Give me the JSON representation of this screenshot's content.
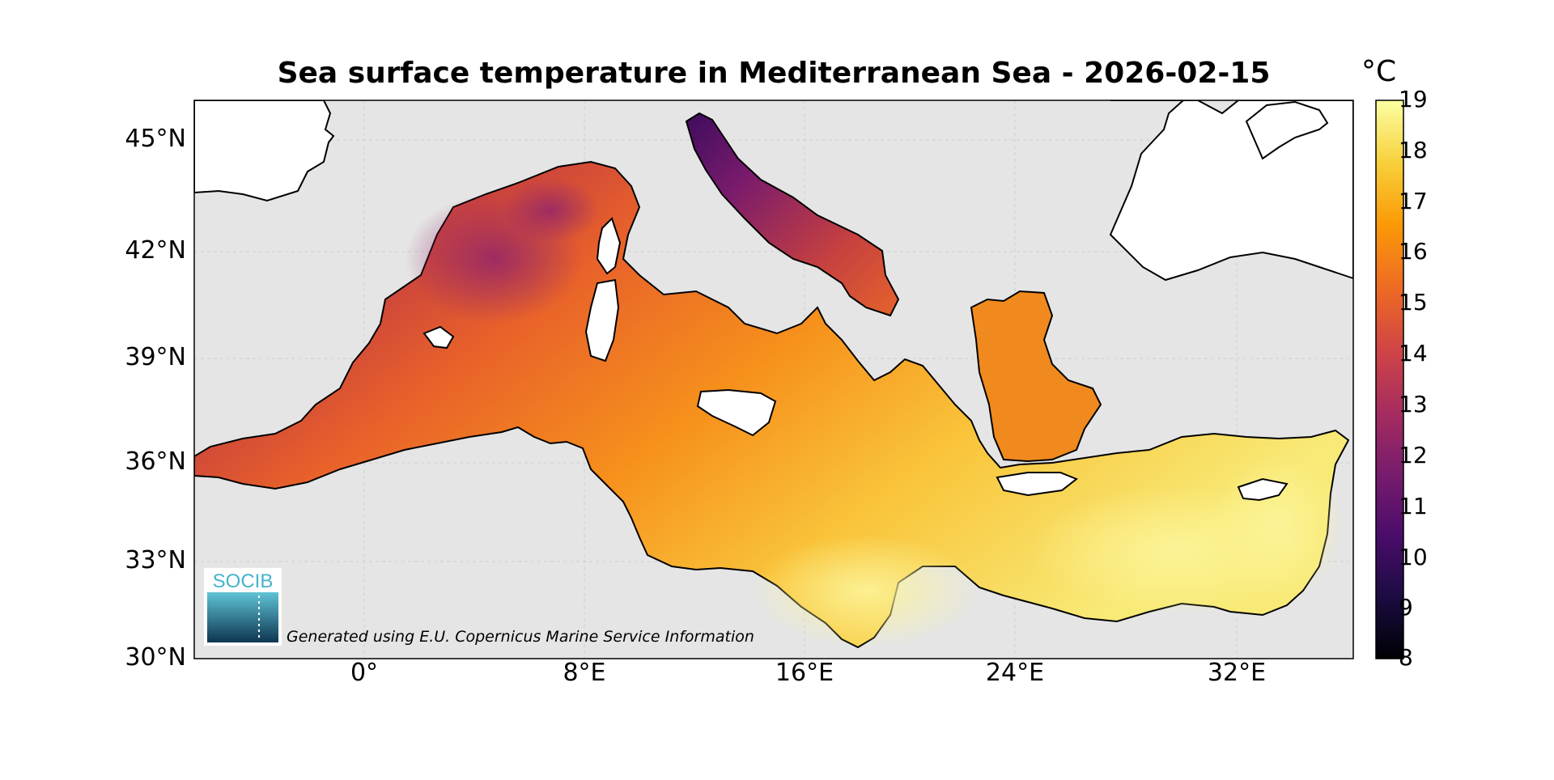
{
  "title": "Sea surface temperature in Mediterranean Sea - 2026-02-15",
  "colorbar": {
    "unit": "°C",
    "ticks": [
      "19",
      "18",
      "17",
      "16",
      "15",
      "14",
      "13",
      "12",
      "11",
      "10",
      "9",
      "8"
    ],
    "min": 8,
    "max": 19,
    "colormap": [
      "#000004",
      "#1b0c41",
      "#4a0c6b",
      "#781c6d",
      "#a52c60",
      "#cf4446",
      "#ed6925",
      "#fb9b06",
      "#f7d13d",
      "#fcffa4"
    ]
  },
  "axes": {
    "lat_labels": [
      "45°N",
      "42°N",
      "39°N",
      "36°N",
      "33°N",
      "30°N"
    ],
    "lon_labels": [
      "0°",
      "8°E",
      "16°E",
      "24°E",
      "32°E"
    ]
  },
  "logo": {
    "text": "SOCIB"
  },
  "credit": "Generated using E.U. Copernicus Marine Service Information",
  "colors": {
    "land": "#ffffff",
    "no_data": "#e5e5e5",
    "coast": "#000000"
  }
}
